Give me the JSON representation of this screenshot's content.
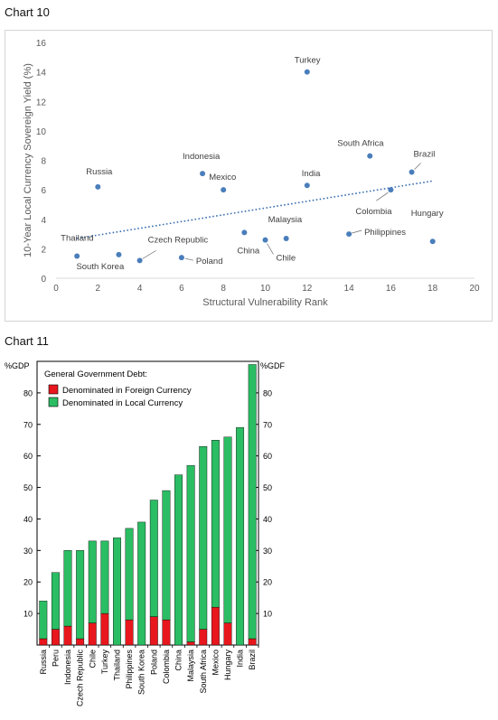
{
  "chart_data": [
    {
      "caption": "Chart 10",
      "type": "scatter",
      "xlabel": "Structural Vulnerability Rank",
      "ylabel": "10-Year Local Currency Sovereign Yield (%)",
      "xlim": [
        0,
        20
      ],
      "ylim": [
        0,
        16
      ],
      "xticks": [
        0,
        2,
        4,
        6,
        8,
        10,
        12,
        14,
        16,
        18,
        20
      ],
      "yticks": [
        0,
        2,
        4,
        6,
        8,
        10,
        12,
        14,
        16
      ],
      "grid": false,
      "trendline": {
        "style": "dotted",
        "start": [
          1,
          2.7
        ],
        "end": [
          18,
          6.6
        ]
      },
      "color": "#4a7ebb",
      "trend_color": "#3a6fb0",
      "points": [
        {
          "label": "Thailand",
          "x": 1,
          "y": 1.5
        },
        {
          "label": "Russia",
          "x": 2,
          "y": 6.2
        },
        {
          "label": "South Korea",
          "x": 3,
          "y": 1.6
        },
        {
          "label": "Czech Republic",
          "x": 4,
          "y": 1.2
        },
        {
          "label": "Poland",
          "x": 6,
          "y": 1.4
        },
        {
          "label": "Indonesia",
          "x": 7,
          "y": 7.1
        },
        {
          "label": "Mexico",
          "x": 8,
          "y": 6.0
        },
        {
          "label": "China",
          "x": 9,
          "y": 3.1
        },
        {
          "label": "Chile",
          "x": 10,
          "y": 2.6
        },
        {
          "label": "Malaysia",
          "x": 11,
          "y": 2.7
        },
        {
          "label": "Turkey",
          "x": 12,
          "y": 14.0
        },
        {
          "label": "India",
          "x": 12,
          "y": 6.3
        },
        {
          "label": "Philippines",
          "x": 14,
          "y": 3.0
        },
        {
          "label": "South Africa",
          "x": 15,
          "y": 8.3
        },
        {
          "label": "Colombia",
          "x": 16,
          "y": 6.0
        },
        {
          "label": "Brazil",
          "x": 17,
          "y": 7.2
        },
        {
          "label": "Hungary",
          "x": 18,
          "y": 2.5
        }
      ]
    },
    {
      "caption": "Chart 11",
      "type": "bar",
      "stacked": true,
      "ylabel_left": "%GDP",
      "ylabel_right": "%GDF",
      "ylim": [
        0,
        90
      ],
      "yticks": [
        10,
        20,
        30,
        40,
        50,
        60,
        70,
        80
      ],
      "legend_title": "General Government Debt:",
      "legend_position": "top-left",
      "categories": [
        "Russia",
        "Peru",
        "Indonesia",
        "Czech Republic",
        "Chile",
        "Turkey",
        "Thailand",
        "Philippines",
        "South Korea",
        "Poland",
        "Colombia",
        "China",
        "Malaysia",
        "South Africa",
        "Mexico",
        "Hungary",
        "India",
        "Brazil"
      ],
      "series": [
        {
          "name": "Denominated in Foreign Currency",
          "color": "#e8171d",
          "values": [
            2,
            5,
            6,
            2,
            7,
            10,
            0,
            8,
            0,
            9,
            8,
            0,
            1,
            5,
            12,
            7,
            0,
            2
          ]
        },
        {
          "name": "Denominated in Local Currency",
          "color": "#2bbd63",
          "values": [
            12,
            18,
            24,
            28,
            26,
            23,
            34,
            29,
            39,
            37,
            41,
            54,
            56,
            58,
            53,
            59,
            69,
            87
          ]
        }
      ]
    }
  ]
}
